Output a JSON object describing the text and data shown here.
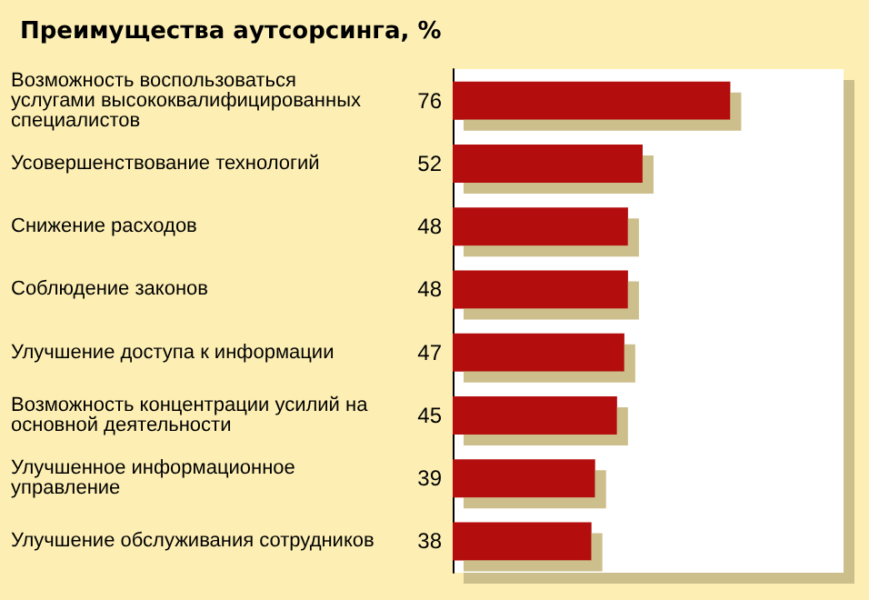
{
  "chart_data": {
    "type": "bar",
    "orientation": "horizontal",
    "title": "Преимущества аутсорсинга, %",
    "categories": [
      "Возможность воспользоваться услугами высококвалифицированных специалистов",
      "Усовершенствование технологий",
      "Снижение расходов",
      "Соблюдение законов",
      "Улучшение доступа к информации",
      "Возможность концентрации усилий на основной деятельности",
      "Улучшенное информационное управление",
      "Улучшение обслуживания сотрудников"
    ],
    "values": [
      76,
      52,
      48,
      48,
      47,
      45,
      39,
      38
    ],
    "color": "#b30a0a",
    "xlim": [
      0,
      107
    ],
    "data_labels": true
  }
}
